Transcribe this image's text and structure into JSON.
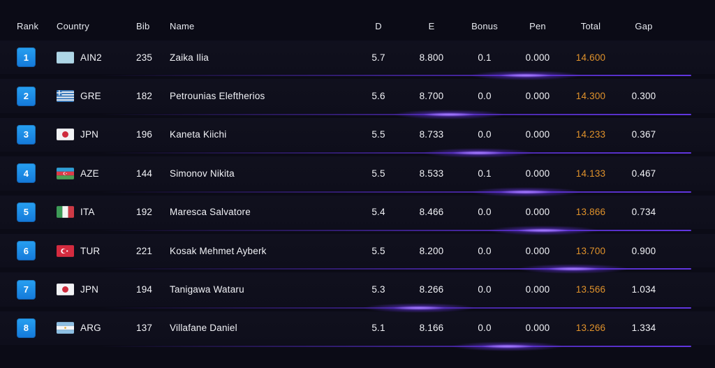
{
  "colors": {
    "bg": "#0b0b16",
    "text": "#f2f3f7",
    "orange": "#e0922b",
    "accent_blue": "#1e8fe4",
    "separator_purple": "#5d31d8",
    "glow_purple": "#8c5cff"
  },
  "table": {
    "headers": {
      "rank": "Rank",
      "country": "Country",
      "bib": "Bib",
      "name": "Name",
      "d": "D",
      "e": "E",
      "bonus": "Bonus",
      "pen": "Pen",
      "total": "Total",
      "gap": "Gap"
    },
    "rows": [
      {
        "rank": "1",
        "country": "AIN2",
        "bib": "235",
        "name": "Zaika Ilia",
        "d": "5.7",
        "e": "8.800",
        "bonus": "0.1",
        "pen": "0.000",
        "total": "14.600",
        "gap": "",
        "glow_pct": 72
      },
      {
        "rank": "2",
        "country": "GRE",
        "bib": "182",
        "name": "Petrounias Eleftherios",
        "d": "5.6",
        "e": "8.700",
        "bonus": "0.0",
        "pen": "0.000",
        "total": "14.300",
        "gap": "0.300",
        "glow_pct": 59
      },
      {
        "rank": "3",
        "country": "JPN",
        "bib": "196",
        "name": "Kaneta Kiichi",
        "d": "5.5",
        "e": "8.733",
        "bonus": "0.0",
        "pen": "0.000",
        "total": "14.233",
        "gap": "0.367",
        "glow_pct": 64
      },
      {
        "rank": "4",
        "country": "AZE",
        "bib": "144",
        "name": "Simonov Nikita",
        "d": "5.5",
        "e": "8.533",
        "bonus": "0.1",
        "pen": "0.000",
        "total": "14.133",
        "gap": "0.467",
        "glow_pct": 72
      },
      {
        "rank": "5",
        "country": "ITA",
        "bib": "192",
        "name": "Maresca Salvatore",
        "d": "5.4",
        "e": "8.466",
        "bonus": "0.0",
        "pen": "0.000",
        "total": "13.866",
        "gap": "0.734",
        "glow_pct": 75
      },
      {
        "rank": "6",
        "country": "TUR",
        "bib": "221",
        "name": "Kosak Mehmet Ayberk",
        "d": "5.5",
        "e": "8.200",
        "bonus": "0.0",
        "pen": "0.000",
        "total": "13.700",
        "gap": "0.900",
        "glow_pct": 80
      },
      {
        "rank": "7",
        "country": "JPN",
        "bib": "194",
        "name": "Tanigawa Wataru",
        "d": "5.3",
        "e": "8.266",
        "bonus": "0.0",
        "pen": "0.000",
        "total": "13.566",
        "gap": "1.034",
        "glow_pct": 54
      },
      {
        "rank": "8",
        "country": "ARG",
        "bib": "137",
        "name": "Villafane Daniel",
        "d": "5.1",
        "e": "8.166",
        "bonus": "0.0",
        "pen": "0.000",
        "total": "13.266",
        "gap": "1.334",
        "glow_pct": 69
      }
    ]
  }
}
